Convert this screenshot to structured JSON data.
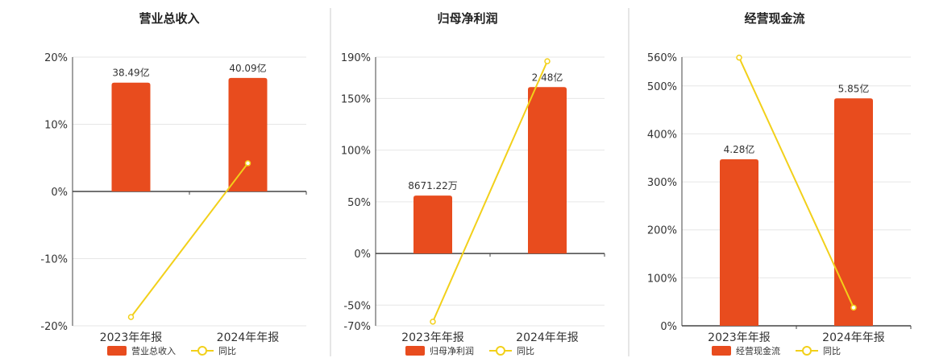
{
  "colors": {
    "bar": "#E84C1E",
    "line": "#F2D01A",
    "grid": "#e6e6e6",
    "axis": "#444444",
    "divider": "#cccccc"
  },
  "chart_data": [
    {
      "type": "bar",
      "title": "营业总收入",
      "categories": [
        "2023年年报",
        "2024年年报"
      ],
      "bar_series": {
        "name": "营业总收入",
        "labels": [
          "38.49亿",
          "40.09亿"
        ],
        "heights": [
          16.2,
          16.9
        ]
      },
      "line_series": {
        "name": "同比",
        "values": [
          -18.7,
          4.2
        ]
      },
      "y_ticks": [
        20,
        10,
        0,
        -10,
        -20
      ],
      "tick_labels": [
        "20%",
        "10%",
        "0%",
        "-10%",
        "-20%"
      ],
      "ylim": [
        -20,
        20
      ]
    },
    {
      "type": "bar",
      "title": "归母净利润",
      "categories": [
        "2023年年报",
        "2024年年报"
      ],
      "bar_series": {
        "name": "归母净利润",
        "labels": [
          "8671.22万",
          "2.48亿"
        ],
        "heights": [
          56,
          161
        ]
      },
      "line_series": {
        "name": "同比",
        "values": [
          -66,
          186
        ]
      },
      "y_ticks": [
        190,
        150,
        100,
        50,
        0,
        -50,
        -70
      ],
      "tick_labels": [
        "190%",
        "150%",
        "100%",
        "50%",
        "0%",
        "-50%",
        "-70%"
      ],
      "ylim": [
        -70,
        190
      ]
    },
    {
      "type": "bar",
      "title": "经营现金流",
      "categories": [
        "2023年年报",
        "2024年年报"
      ],
      "bar_series": {
        "name": "经营现金流",
        "labels": [
          "4.28亿",
          "5.85亿"
        ],
        "heights": [
          347,
          474
        ]
      },
      "line_series": {
        "name": "同比",
        "values": [
          559,
          38
        ]
      },
      "y_ticks": [
        560,
        500,
        400,
        300,
        200,
        100,
        0
      ],
      "tick_labels": [
        "560%",
        "500%",
        "400%",
        "300%",
        "200%",
        "100%",
        "0%"
      ],
      "ylim": [
        0,
        560
      ]
    }
  ]
}
